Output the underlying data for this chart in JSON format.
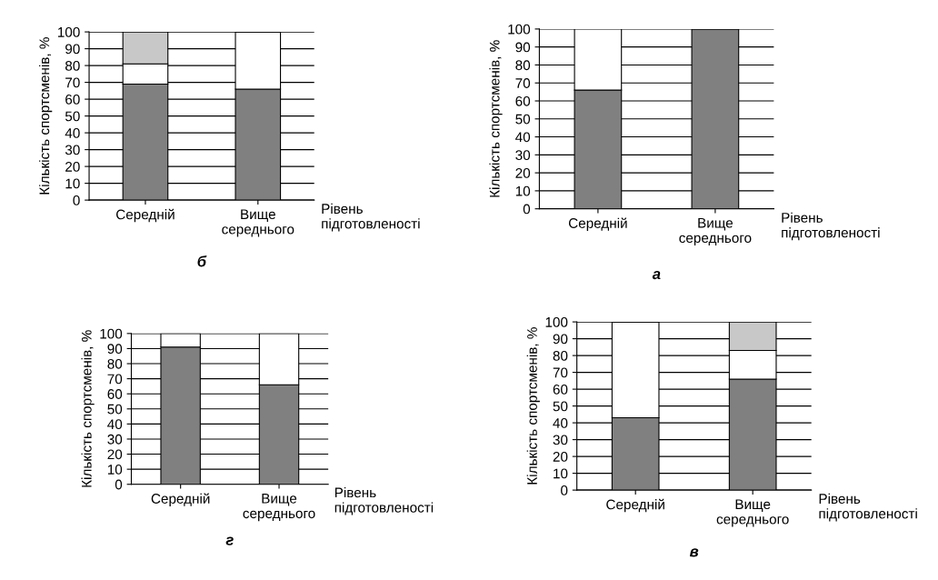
{
  "chart_data": [
    {
      "type": "bar",
      "stacked": true,
      "categories": [
        "Середній",
        "Вище\nсереднього"
      ],
      "xlabel": "Рівень\nпідготовленості",
      "ylabel": "Кількість спортсменів, %",
      "ylim": [
        0,
        100
      ],
      "yticks": [
        0,
        10,
        20,
        30,
        40,
        50,
        60,
        70,
        80,
        90,
        100
      ],
      "grid": "y",
      "annotations": [
        "б"
      ],
      "series": [
        {
          "color": "#808080",
          "values": [
            69,
            66
          ]
        },
        {
          "color": "#ffffff",
          "values": [
            12,
            34
          ]
        },
        {
          "color": "#c8c8c8",
          "values": [
            19,
            null
          ]
        }
      ]
    },
    {
      "type": "bar",
      "stacked": true,
      "categories": [
        "Середній",
        "Вище\nсереднього"
      ],
      "xlabel": "Рівень\nпідготовленості",
      "ylabel": "Кількість спортсменів, %",
      "ylim": [
        0,
        100
      ],
      "yticks": [
        0,
        10,
        20,
        30,
        40,
        50,
        60,
        70,
        80,
        90,
        100
      ],
      "grid": "y",
      "annotations": [
        "а"
      ],
      "series": [
        {
          "color": "#808080",
          "values": [
            66,
            100
          ]
        },
        {
          "color": "#ffffff",
          "values": [
            34,
            null
          ]
        }
      ]
    },
    {
      "type": "bar",
      "stacked": true,
      "categories": [
        "Середній",
        "Вище\nсереднього"
      ],
      "xlabel": "Рівень\nпідготовленості",
      "ylabel": "Кількість спортсменів, %",
      "ylim": [
        0,
        100
      ],
      "yticks": [
        0,
        10,
        20,
        30,
        40,
        50,
        60,
        70,
        80,
        90,
        100
      ],
      "grid": "y",
      "annotations": [
        "г"
      ],
      "series": [
        {
          "color": "#808080",
          "values": [
            91,
            66
          ]
        },
        {
          "color": "#ffffff",
          "values": [
            9,
            34
          ]
        }
      ]
    },
    {
      "type": "bar",
      "stacked": true,
      "categories": [
        "Середній",
        "Вище\nсереднього"
      ],
      "xlabel": "Рівень\nпідготовленості",
      "ylabel": "Кількість спортсменів, %",
      "ylim": [
        0,
        100
      ],
      "yticks": [
        0,
        10,
        20,
        30,
        40,
        50,
        60,
        70,
        80,
        90,
        100
      ],
      "grid": "y",
      "annotations": [
        "в"
      ],
      "series": [
        {
          "color": "#808080",
          "values": [
            43,
            66
          ]
        },
        {
          "color": "#ffffff",
          "values": [
            57,
            17
          ]
        },
        {
          "color": "#c8c8c8",
          "values": [
            null,
            17
          ]
        }
      ]
    }
  ]
}
